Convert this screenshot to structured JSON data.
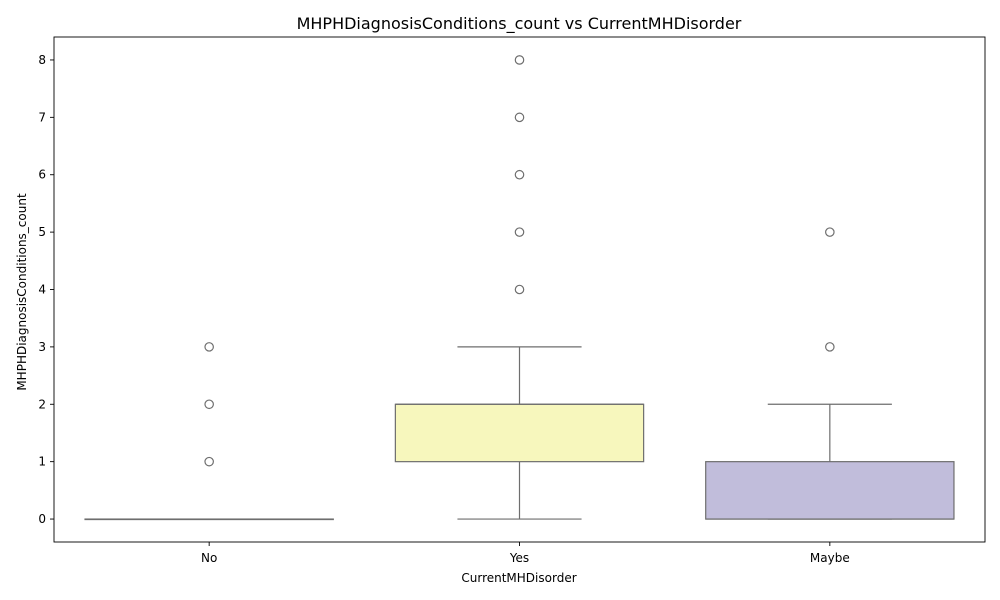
{
  "chart_data": {
    "type": "box",
    "title": "MHPHDiagnosisConditions_count vs CurrentMHDisorder",
    "xlabel": "CurrentMHDisorder",
    "ylabel": "MHPHDiagnosisConditions_count",
    "ylim": [
      -0.4,
      8.4
    ],
    "yticks": [
      "0",
      "1",
      "2",
      "3",
      "4",
      "5",
      "6",
      "7",
      "8"
    ],
    "grid": false,
    "categories": [
      "No",
      "Yes",
      "Maybe"
    ],
    "boxes": [
      {
        "category": "No",
        "whisker_low": 0,
        "q1": 0,
        "median": 0,
        "q3": 0,
        "whisker_high": 0,
        "outliers": [
          1,
          2,
          3
        ],
        "color": "#8dd3c7"
      },
      {
        "category": "Yes",
        "whisker_low": 0,
        "q1": 1,
        "median": 2,
        "q3": 2,
        "whisker_high": 3,
        "outliers": [
          4,
          5,
          6,
          7,
          8
        ],
        "color": "#f7f7bd"
      },
      {
        "category": "Maybe",
        "whisker_low": 0,
        "q1": 0,
        "median": 0,
        "q3": 1,
        "whisker_high": 2,
        "outliers": [
          3,
          5
        ],
        "color": "#c1bddb"
      }
    ],
    "line_color": "#6e6e6e"
  }
}
